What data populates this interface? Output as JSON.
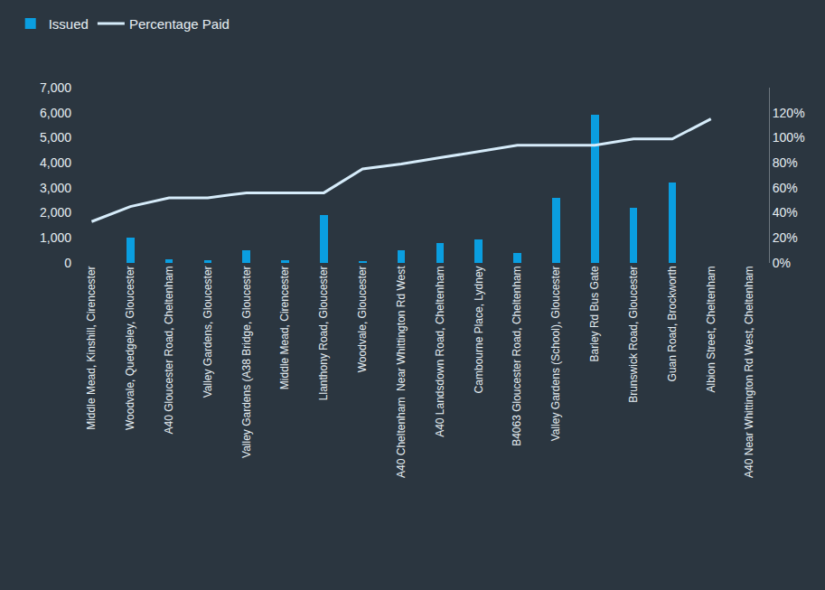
{
  "chart_data": {
    "type": "bar",
    "categories": [
      "Middle Mead, Kinshill, Cirencester",
      "Woodvale, Quedgeley, Gloucester",
      "A40 Gloucester Road, Cheltenham",
      "Valley Gardens, Gloucester",
      "Valley Gardens (A38 Bridge, Gloucester",
      "Middle Mead, Cirencester",
      "Llanthony Road, Gloucester",
      "Woodvale, Gloucester",
      "A40 Cheltenham  Near Whittington Rd West",
      "A40 Landsdown Road, Cheltenham",
      "Cambourne Place, Lydney",
      "B4063 Gloucester Road, Cheltenham",
      "Valley Gardens (School), Gloucester",
      "Barley Rd Bus Gate",
      "Brunswick Road, Gloucester",
      "Guan Road, Brockworth",
      "Albion Street, Cheltenham",
      "A40 Near Whittington Rd West, Cheltenham"
    ],
    "series": [
      {
        "name": "Issued",
        "type": "bar",
        "color": "#0a9ee0",
        "values": [
          0,
          1000,
          150,
          100,
          500,
          100,
          1900,
          80,
          500,
          800,
          950,
          400,
          2600,
          5900,
          2200,
          3200,
          0,
          0
        ]
      },
      {
        "name": "Percentage Paid",
        "type": "line",
        "axis": "y2",
        "color": "#d6ecfa",
        "values": [
          33,
          45,
          52,
          52,
          56,
          56,
          56,
          75,
          79,
          84,
          89,
          94,
          94,
          94,
          99,
          99,
          115,
          null
        ]
      }
    ],
    "ylim": [
      0,
      7000
    ],
    "yticks": [
      0,
      {
        "value": 1000,
        "label": "1,000"
      },
      {
        "value": 2000,
        "label": "2,000"
      },
      {
        "value": 3000,
        "label": "3,000"
      },
      {
        "value": 4000,
        "label": "4,000"
      },
      {
        "value": 5000,
        "label": "5,000"
      },
      {
        "value": 6000,
        "label": "6,000"
      },
      {
        "value": 7000,
        "label": "7,000"
      }
    ],
    "y2lim": [
      0,
      140
    ],
    "y2ticks": [
      {
        "value": 0,
        "label": "0%"
      },
      {
        "value": 20,
        "label": "20%"
      },
      {
        "value": 40,
        "label": "40%"
      },
      {
        "value": 60,
        "label": "60%"
      },
      {
        "value": 80,
        "label": "80%"
      },
      {
        "value": 100,
        "label": "100%"
      },
      {
        "value": 120,
        "label": "120%"
      }
    ],
    "grid": false,
    "legend": "top-left"
  }
}
